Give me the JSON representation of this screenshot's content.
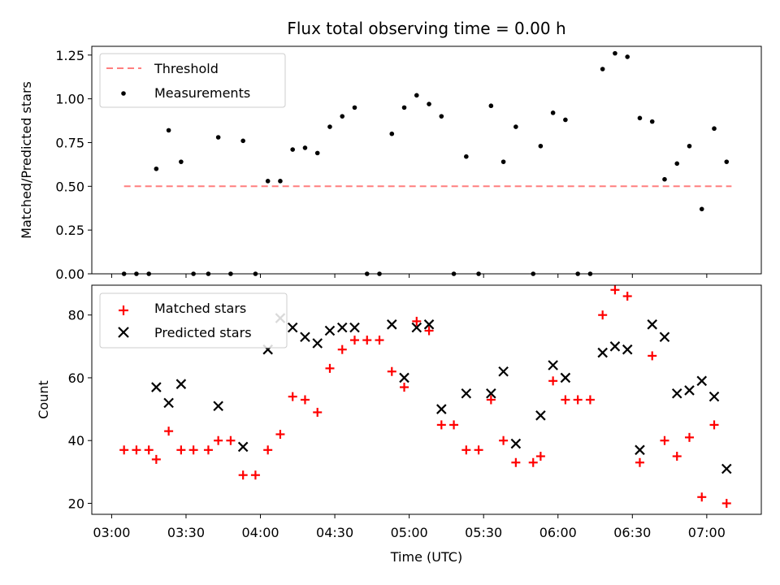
{
  "chart_data": [
    {
      "type": "scatter",
      "title": "Flux total observing time = 0.00 h",
      "xlabel": "",
      "ylabel": "Matched/Predicted stars",
      "xlim": [
        "02:52",
        "07:22"
      ],
      "ylim": [
        0,
        1.3
      ],
      "yticks": [
        "0.00",
        "0.25",
        "0.50",
        "0.75",
        "1.00",
        "1.25"
      ],
      "legend": {
        "position": "top-left",
        "entries": [
          "Threshold",
          "Measurements"
        ]
      },
      "threshold": {
        "name": "Threshold",
        "x": [
          "03:05",
          "07:10"
        ],
        "y": 0.5,
        "color": "#ff7f7f",
        "style": "dashed"
      },
      "series": [
        {
          "name": "Measurements",
          "color": "#000000",
          "marker": "dot",
          "points": [
            [
              "03:05",
              0.0
            ],
            [
              "03:10",
              0.0
            ],
            [
              "03:15",
              0.0
            ],
            [
              "03:18",
              0.6
            ],
            [
              "03:23",
              0.82
            ],
            [
              "03:28",
              0.64
            ],
            [
              "03:33",
              0.0
            ],
            [
              "03:39",
              0.0
            ],
            [
              "03:43",
              0.78
            ],
            [
              "03:48",
              0.0
            ],
            [
              "03:53",
              0.76
            ],
            [
              "03:58",
              0.0
            ],
            [
              "04:03",
              0.53
            ],
            [
              "04:08",
              0.53
            ],
            [
              "04:13",
              0.71
            ],
            [
              "04:18",
              0.72
            ],
            [
              "04:23",
              0.69
            ],
            [
              "04:28",
              0.84
            ],
            [
              "04:33",
              0.9
            ],
            [
              "04:38",
              0.95
            ],
            [
              "04:43",
              0.0
            ],
            [
              "04:48",
              0.0
            ],
            [
              "04:53",
              0.8
            ],
            [
              "04:58",
              0.95
            ],
            [
              "05:03",
              1.02
            ],
            [
              "05:08",
              0.97
            ],
            [
              "05:13",
              0.9
            ],
            [
              "05:18",
              0.0
            ],
            [
              "05:23",
              0.67
            ],
            [
              "05:28",
              0.0
            ],
            [
              "05:33",
              0.96
            ],
            [
              "05:38",
              0.64
            ],
            [
              "05:43",
              0.84
            ],
            [
              "05:50",
              0.0
            ],
            [
              "05:53",
              0.73
            ],
            [
              "05:58",
              0.92
            ],
            [
              "06:03",
              0.88
            ],
            [
              "06:08",
              0.0
            ],
            [
              "06:13",
              0.0
            ],
            [
              "06:18",
              1.17
            ],
            [
              "06:23",
              1.26
            ],
            [
              "06:28",
              1.24
            ],
            [
              "06:33",
              0.89
            ],
            [
              "06:38",
              0.87
            ],
            [
              "06:43",
              0.54
            ],
            [
              "06:48",
              0.63
            ],
            [
              "06:53",
              0.73
            ],
            [
              "06:58",
              0.37
            ],
            [
              "07:03",
              0.83
            ],
            [
              "07:08",
              0.64
            ]
          ]
        }
      ]
    },
    {
      "type": "scatter",
      "title": "",
      "xlabel": "Time (UTC)",
      "ylabel": "Count",
      "xlim": [
        "02:52",
        "07:22"
      ],
      "ylim": [
        16.5,
        89.5
      ],
      "yticks": [
        "20",
        "40",
        "60",
        "80"
      ],
      "xticks": [
        "03:00",
        "03:30",
        "04:00",
        "04:30",
        "05:00",
        "05:30",
        "06:00",
        "06:30",
        "07:00"
      ],
      "legend": {
        "position": "top-left",
        "entries": [
          "Matched stars",
          "Predicted stars"
        ]
      },
      "series": [
        {
          "name": "Matched stars",
          "color": "#ff0000",
          "marker": "plus",
          "points": [
            [
              "03:05",
              37
            ],
            [
              "03:10",
              37
            ],
            [
              "03:15",
              37
            ],
            [
              "03:18",
              34
            ],
            [
              "03:23",
              43
            ],
            [
              "03:28",
              37
            ],
            [
              "03:33",
              37
            ],
            [
              "03:39",
              37
            ],
            [
              "03:43",
              40
            ],
            [
              "03:48",
              40
            ],
            [
              "03:53",
              29
            ],
            [
              "03:58",
              29
            ],
            [
              "04:03",
              37
            ],
            [
              "04:08",
              42
            ],
            [
              "04:13",
              54
            ],
            [
              "04:18",
              53
            ],
            [
              "04:23",
              49
            ],
            [
              "04:28",
              63
            ],
            [
              "04:33",
              69
            ],
            [
              "04:38",
              72
            ],
            [
              "04:43",
              72
            ],
            [
              "04:48",
              72
            ],
            [
              "04:53",
              62
            ],
            [
              "04:58",
              57
            ],
            [
              "05:03",
              78
            ],
            [
              "05:08",
              75
            ],
            [
              "05:13",
              45
            ],
            [
              "05:18",
              45
            ],
            [
              "05:23",
              37
            ],
            [
              "05:28",
              37
            ],
            [
              "05:33",
              53
            ],
            [
              "05:38",
              40
            ],
            [
              "05:43",
              33
            ],
            [
              "05:50",
              33
            ],
            [
              "05:53",
              35
            ],
            [
              "05:58",
              59
            ],
            [
              "06:03",
              53
            ],
            [
              "06:08",
              53
            ],
            [
              "06:13",
              53
            ],
            [
              "06:18",
              80
            ],
            [
              "06:23",
              88
            ],
            [
              "06:28",
              86
            ],
            [
              "06:33",
              33
            ],
            [
              "06:38",
              67
            ],
            [
              "06:43",
              40
            ],
            [
              "06:48",
              35
            ],
            [
              "06:53",
              41
            ],
            [
              "06:58",
              22
            ],
            [
              "07:03",
              45
            ],
            [
              "07:08",
              20
            ]
          ]
        },
        {
          "name": "Predicted stars",
          "color": "#000000",
          "marker": "x",
          "points": [
            [
              "03:18",
              57
            ],
            [
              "03:23",
              52
            ],
            [
              "03:28",
              58
            ],
            [
              "03:43",
              51
            ],
            [
              "03:53",
              38
            ],
            [
              "04:03",
              69
            ],
            [
              "04:08",
              79
            ],
            [
              "04:13",
              76
            ],
            [
              "04:18",
              73
            ],
            [
              "04:23",
              71
            ],
            [
              "04:28",
              75
            ],
            [
              "04:33",
              76
            ],
            [
              "04:38",
              76
            ],
            [
              "04:53",
              77
            ],
            [
              "04:58",
              60
            ],
            [
              "05:03",
              76
            ],
            [
              "05:08",
              77
            ],
            [
              "05:13",
              50
            ],
            [
              "05:23",
              55
            ],
            [
              "05:33",
              55
            ],
            [
              "05:38",
              62
            ],
            [
              "05:43",
              39
            ],
            [
              "05:53",
              48
            ],
            [
              "05:58",
              64
            ],
            [
              "06:03",
              60
            ],
            [
              "06:18",
              68
            ],
            [
              "06:23",
              70
            ],
            [
              "06:28",
              69
            ],
            [
              "06:33",
              37
            ],
            [
              "06:38",
              77
            ],
            [
              "06:43",
              73
            ],
            [
              "06:48",
              55
            ],
            [
              "06:53",
              56
            ],
            [
              "06:58",
              59
            ],
            [
              "07:03",
              54
            ],
            [
              "07:08",
              31
            ]
          ]
        }
      ]
    }
  ]
}
